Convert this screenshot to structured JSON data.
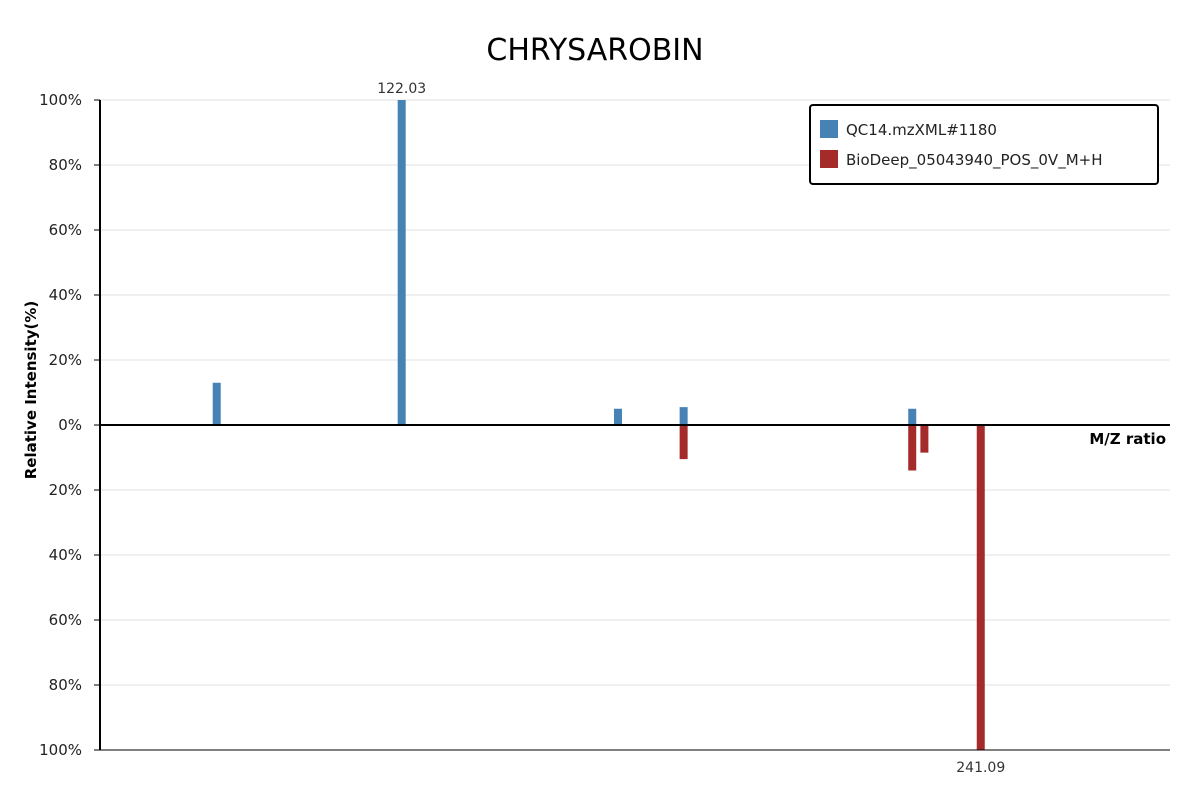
{
  "chart_data": {
    "type": "bar",
    "title": "CHRYSAROBIN",
    "xlabel": "M/Z ratio",
    "ylabel": "Relative Intensity(%)",
    "ylim": [
      -100,
      100
    ],
    "y_ticks": [
      "100%",
      "80%",
      "60%",
      "40%",
      "20%",
      "0%",
      "20%",
      "40%",
      "60%",
      "80%",
      "100%"
    ],
    "grid": true,
    "legend_position": "top-right",
    "colors": {
      "query": "#4682b4",
      "reference": "#a52a2a"
    },
    "series": [
      {
        "name": "QC14.mzXML#1180",
        "color": "#4682b4",
        "direction": "up",
        "peaks": [
          {
            "mz": 84.0,
            "intensity": 13
          },
          {
            "mz": 122.03,
            "intensity": 100,
            "label": "122.03"
          },
          {
            "mz": 166.5,
            "intensity": 5
          },
          {
            "mz": 180.0,
            "intensity": 5.5
          },
          {
            "mz": 227.0,
            "intensity": 5
          }
        ]
      },
      {
        "name": "BioDeep_05043940_POS_0V_M+H",
        "color": "#a52a2a",
        "direction": "down",
        "peaks": [
          {
            "mz": 180.0,
            "intensity": 10.5
          },
          {
            "mz": 227.0,
            "intensity": 14
          },
          {
            "mz": 229.5,
            "intensity": 8.5
          },
          {
            "mz": 241.09,
            "intensity": 100,
            "label": "241.09"
          }
        ]
      }
    ]
  }
}
